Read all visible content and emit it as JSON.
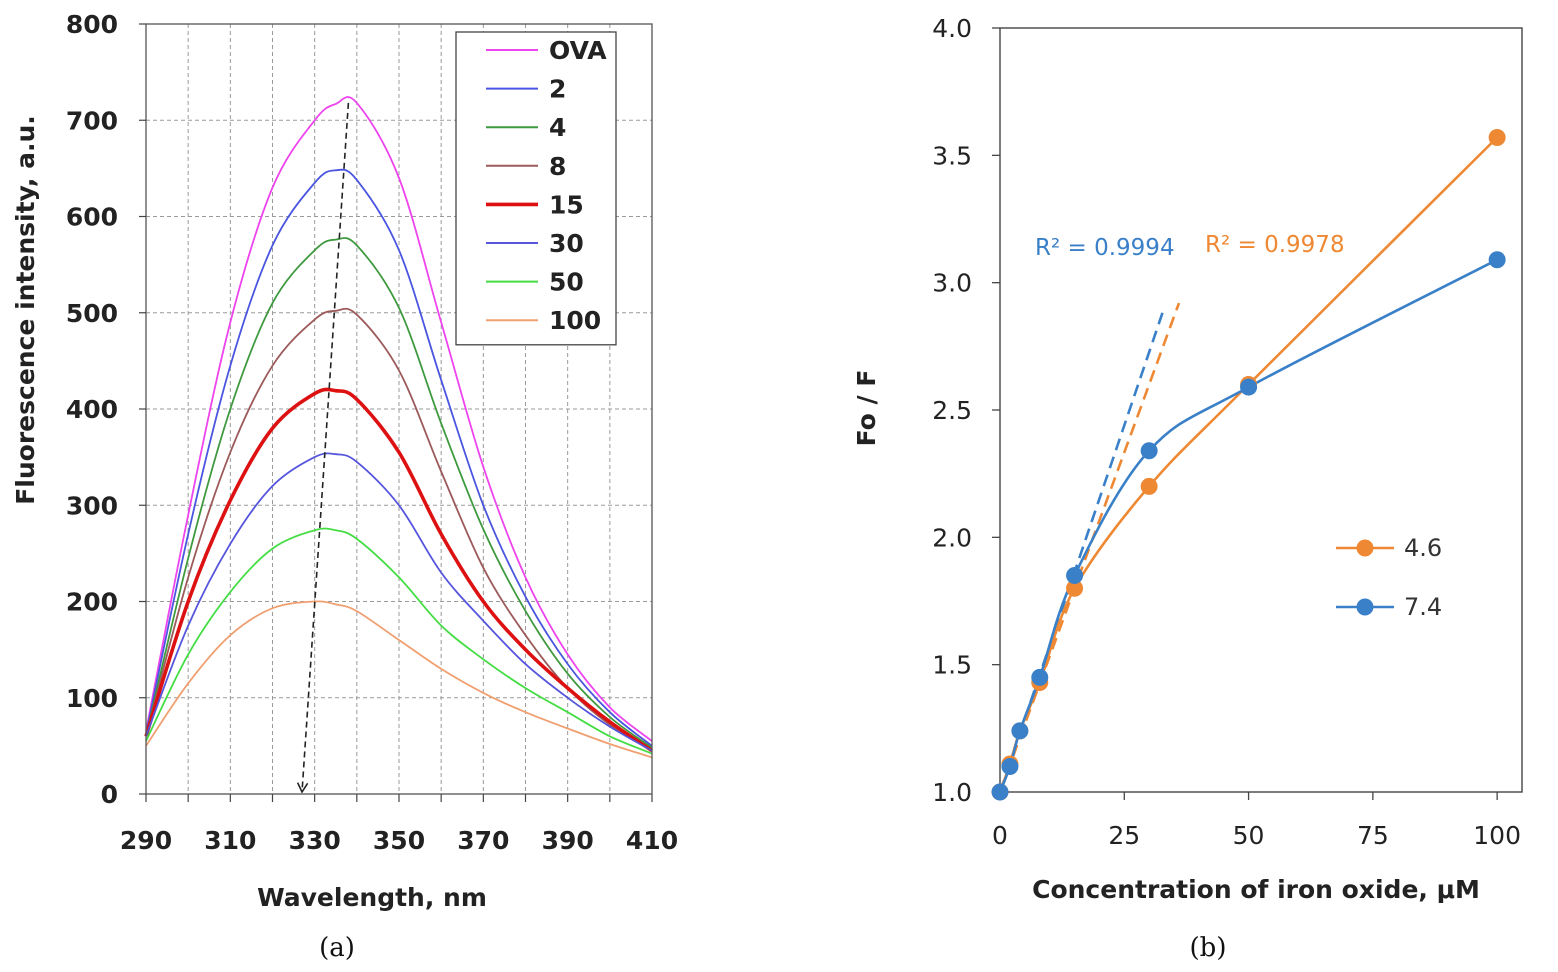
{
  "chart_data": [
    {
      "panel_label": "(a)",
      "type": "line",
      "xlabel": "Wavelength, nm",
      "ylabel": "Fluorescence intensity, a.u.",
      "xlim": [
        290,
        410
      ],
      "ylim": [
        0,
        800
      ],
      "x_ticks": [
        290,
        310,
        330,
        350,
        370,
        390,
        410
      ],
      "y_ticks": [
        0,
        100,
        200,
        300,
        400,
        500,
        600,
        700,
        800
      ],
      "grid": true,
      "legend_position": "top-right",
      "x": [
        290,
        300,
        310,
        320,
        330,
        335,
        340,
        350,
        360,
        370,
        380,
        390,
        400,
        410
      ],
      "series": [
        {
          "name": "OVA",
          "color": "#ee44ee",
          "values": [
            65,
            290,
            490,
            630,
            700,
            717,
            718,
            640,
            490,
            340,
            225,
            145,
            90,
            55
          ]
        },
        {
          "name": "2",
          "color": "#4a55e0",
          "values": [
            62,
            270,
            445,
            570,
            635,
            648,
            638,
            565,
            430,
            300,
            205,
            135,
            85,
            50
          ]
        },
        {
          "name": "4",
          "color": "#3f9a3f",
          "values": [
            60,
            245,
            400,
            510,
            565,
            576,
            570,
            505,
            385,
            275,
            190,
            125,
            80,
            48
          ]
        },
        {
          "name": "8",
          "color": "#9c5a5a",
          "values": [
            60,
            225,
            355,
            445,
            493,
            502,
            498,
            440,
            335,
            235,
            165,
            110,
            72,
            45
          ]
        },
        {
          "name": "15",
          "color": "#dd1111",
          "values": [
            60,
            200,
            305,
            380,
            416,
            419,
            410,
            355,
            270,
            200,
            150,
            110,
            75,
            45
          ]
        },
        {
          "name": "30",
          "color": "#5555dd",
          "values": [
            60,
            175,
            260,
            320,
            350,
            353,
            345,
            300,
            230,
            180,
            135,
            100,
            70,
            45
          ]
        },
        {
          "name": "50",
          "color": "#44dd44",
          "values": [
            55,
            145,
            210,
            255,
            274,
            274,
            265,
            225,
            175,
            140,
            110,
            85,
            60,
            42
          ]
        },
        {
          "name": "100",
          "color": "#f0a070",
          "values": [
            50,
            115,
            165,
            193,
            200,
            197,
            190,
            160,
            130,
            105,
            85,
            68,
            52,
            38
          ]
        }
      ],
      "arrow": {
        "from": [
          338,
          718
        ],
        "to": [
          327,
          0
        ]
      }
    },
    {
      "panel_label": "(b)",
      "type": "line",
      "xlabel": "Concentration of iron oxide, μM",
      "ylabel": "Fo / F",
      "xlim": [
        0,
        105
      ],
      "ylim": [
        1.0,
        4.0
      ],
      "x_ticks": [
        0,
        25,
        50,
        75,
        100
      ],
      "y_ticks": [
        "1.0",
        "1.5",
        "2.0",
        "2.5",
        "3.0",
        "3.5",
        "4.0"
      ],
      "grid": false,
      "legend_position": "right",
      "series": [
        {
          "name": "4.6",
          "color": "#ee8833",
          "x": [
            0,
            2,
            4,
            8,
            15,
            30,
            50,
            100
          ],
          "values": [
            1.0,
            1.11,
            1.24,
            1.43,
            1.8,
            2.2,
            2.6,
            3.57
          ],
          "fit": {
            "r2_label": "R² = 0.9978",
            "x": [
              0,
              36
            ],
            "y": [
              1.0,
              2.92
            ]
          }
        },
        {
          "name": "7.4",
          "color": "#3a80c8",
          "x": [
            0,
            2,
            4,
            8,
            15,
            30,
            50,
            100
          ],
          "values": [
            1.0,
            1.1,
            1.24,
            1.45,
            1.85,
            2.34,
            2.59,
            3.09
          ],
          "fit": {
            "r2_label": "R² = 0.9994",
            "x": [
              0,
              33
            ],
            "y": [
              1.0,
              2.9
            ]
          }
        }
      ]
    }
  ]
}
